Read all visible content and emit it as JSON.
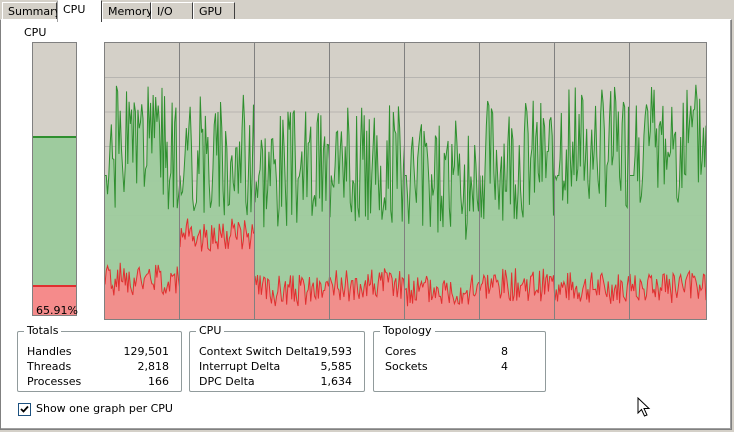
{
  "tabs": [
    {
      "label": "Summary",
      "active": false
    },
    {
      "label": "CPU",
      "active": true
    },
    {
      "label": "Memory",
      "active": false
    },
    {
      "label": "I/O",
      "active": false
    },
    {
      "label": "GPU",
      "active": false
    }
  ],
  "cpu_section_label": "CPU",
  "cpu_usage": {
    "percent_text": "65.91%",
    "total_fraction": 0.6591,
    "kernel_fraction": 0.11
  },
  "colors": {
    "user_fill": "#9ecb9e",
    "user_line": "#2f8f2f",
    "kernel_fill": "#f58b8b",
    "kernel_line": "#e03030",
    "graph_bg": "#d4d0c8"
  },
  "per_cpu_graphs": [
    {
      "user_seed": 1,
      "user_level": 0.62,
      "kernel_level": 0.12
    },
    {
      "user_seed": 2,
      "user_level": 0.6,
      "kernel_level": 0.28
    },
    {
      "user_seed": 3,
      "user_level": 0.55,
      "kernel_level": 0.08
    },
    {
      "user_seed": 4,
      "user_level": 0.57,
      "kernel_level": 0.1
    },
    {
      "user_seed": 5,
      "user_level": 0.5,
      "kernel_level": 0.08
    },
    {
      "user_seed": 6,
      "user_level": 0.58,
      "kernel_level": 0.1
    },
    {
      "user_seed": 7,
      "user_level": 0.62,
      "kernel_level": 0.09
    },
    {
      "user_seed": 8,
      "user_level": 0.64,
      "kernel_level": 0.09
    }
  ],
  "totals": {
    "title": "Totals",
    "rows": [
      {
        "label": "Handles",
        "value": "129,501"
      },
      {
        "label": "Threads",
        "value": "2,818"
      },
      {
        "label": "Processes",
        "value": "166"
      }
    ]
  },
  "cpu_stats": {
    "title": "CPU",
    "rows": [
      {
        "label": "Context Switch Delta",
        "value": "19,593"
      },
      {
        "label": "Interrupt Delta",
        "value": "5,585"
      },
      {
        "label": "DPC Delta",
        "value": "1,634"
      }
    ]
  },
  "topology": {
    "title": "Topology",
    "rows": [
      {
        "label": "Cores",
        "value": "8"
      },
      {
        "label": "Sockets",
        "value": "4"
      }
    ]
  },
  "show_one_graph_per_cpu": {
    "label": "Show one graph per CPU",
    "checked": true
  }
}
